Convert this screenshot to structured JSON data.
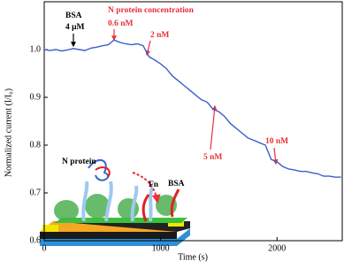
{
  "chart_data": {
    "type": "line",
    "xlabel": "Time (s)",
    "ylabel": "Normalized current (I/I₀)",
    "x": [
      0,
      50,
      100,
      150,
      200,
      250,
      300,
      350,
      400,
      450,
      500,
      550,
      600,
      650,
      700,
      750,
      800,
      850,
      900,
      950,
      1000,
      1050,
      1100,
      1150,
      1200,
      1250,
      1300,
      1350,
      1400,
      1450,
      1500,
      1550,
      1600,
      1650,
      1700,
      1750,
      1800,
      1850,
      1900,
      1950,
      2000,
      2050,
      2100,
      2150,
      2200,
      2250,
      2300,
      2350,
      2400,
      2450,
      2500,
      2550
    ],
    "series": [
      {
        "color": "#3b5fc8",
        "values": [
          1.0,
          0.998,
          1.0,
          0.997,
          0.999,
          1.002,
          1.0,
          0.998,
          1.003,
          1.005,
          1.008,
          1.01,
          1.02,
          1.015,
          1.012,
          1.01,
          1.012,
          1.008,
          0.985,
          0.978,
          0.97,
          0.96,
          0.945,
          0.935,
          0.925,
          0.915,
          0.905,
          0.895,
          0.89,
          0.875,
          0.87,
          0.86,
          0.845,
          0.835,
          0.825,
          0.815,
          0.81,
          0.805,
          0.8,
          0.77,
          0.765,
          0.755,
          0.75,
          0.748,
          0.745,
          0.745,
          0.742,
          0.74,
          0.735,
          0.735,
          0.733,
          0.733
        ]
      }
    ],
    "xlim": [
      0,
      2560
    ],
    "xticks": [
      0,
      1000,
      2000
    ],
    "ylim": [
      0.6,
      1.1
    ],
    "yticks": [
      0.6,
      0.7,
      0.8,
      0.9,
      {
        "value": 1,
        "label": "1.0"
      }
    ],
    "annotations": [
      "BSA",
      "4 μM",
      "N protein concentration",
      "0.6 nM",
      "2 nM",
      "5 nM",
      "10 nM"
    ],
    "inset_labels": [
      "N protein",
      "Fn",
      "BSA"
    ]
  }
}
